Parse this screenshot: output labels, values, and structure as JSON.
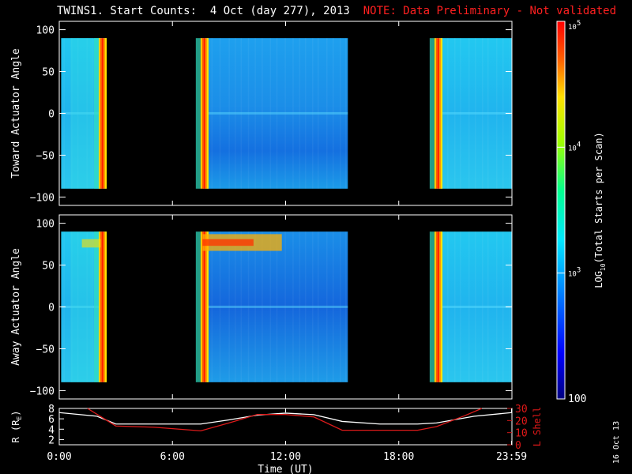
{
  "title": {
    "main": "TWINS1. Start Counts:  4 Oct (day 277), 2013",
    "note": "NOTE: Data Preliminary - Not validated"
  },
  "footer_date": "16 Oct 13",
  "colors": {
    "background": "#000000",
    "text": "#ffffff",
    "note": "#ff2020",
    "axis": "#ffffff",
    "r_line": "#ffffff",
    "lshell_line": "#dd1a1a"
  },
  "chart_data": [
    {
      "type": "heatmap",
      "panel": "toward",
      "ylabel": "Toward Actuator Angle",
      "xlim": [
        0,
        24
      ],
      "ylim": [
        -110,
        110
      ],
      "yticks": [
        -100,
        -50,
        0,
        50,
        100
      ],
      "ytick_labels": [
        "−100",
        "−50",
        "0",
        "50",
        "100"
      ],
      "data_y_range": [
        -90,
        90
      ],
      "data_segments_ut": [
        [
          0.1,
          2.5
        ],
        [
          7.6,
          15.3
        ],
        [
          20.0,
          24.0
        ]
      ],
      "spin_spike_ut": [
        2.3,
        7.7,
        20.1
      ],
      "typical_log10_counts": 3.0
    },
    {
      "type": "heatmap",
      "panel": "away",
      "ylabel": "Away Actuator Angle",
      "xlim": [
        0,
        24
      ],
      "ylim": [
        -110,
        110
      ],
      "yticks": [
        -100,
        -50,
        0,
        50,
        100
      ],
      "ytick_labels": [
        "−100",
        "−50",
        "0",
        "50",
        "100"
      ],
      "data_y_range": [
        -90,
        90
      ],
      "data_segments_ut": [
        [
          0.1,
          2.5
        ],
        [
          7.6,
          15.3
        ],
        [
          20.0,
          24.0
        ]
      ],
      "spin_spike_ut": [
        2.3,
        7.7,
        20.1
      ],
      "high_band_angle": 75,
      "typical_log10_counts": 2.9
    },
    {
      "type": "line",
      "panel": "orbit",
      "xlabel": "Time (UT)",
      "xticks": [
        0,
        6,
        12,
        18,
        23.98
      ],
      "xtick_labels": [
        "0:00",
        "6:00",
        "12:00",
        "18:00",
        "23:59"
      ],
      "xlim": [
        0,
        24
      ],
      "left_axis": {
        "label": "R (R",
        "label_sub": "E",
        "label_end": ")",
        "ylim": [
          1,
          8
        ],
        "ticks": [
          2,
          4,
          6,
          8
        ]
      },
      "right_axis": {
        "label": "L Shell",
        "ylim": [
          0,
          30
        ],
        "ticks": [
          0,
          10,
          20,
          30
        ]
      },
      "series": [
        {
          "axis": "left",
          "x": [
            0,
            2,
            3,
            5,
            7.5,
            9,
            10.5,
            12,
            13.5,
            15,
            17,
            19,
            20,
            22,
            24
          ],
          "values": [
            7.2,
            6.5,
            5.0,
            5.0,
            5.0,
            5.8,
            6.7,
            7.1,
            6.8,
            5.5,
            5.0,
            5.0,
            5.2,
            6.5,
            7.2
          ]
        },
        {
          "axis": "right",
          "x": [
            1.5,
            3,
            5,
            7.5,
            9,
            10.5,
            12,
            13.5,
            15,
            17,
            19,
            20,
            21.5,
            22.4
          ],
          "values": [
            30,
            15.5,
            14.5,
            11.5,
            18,
            25,
            25,
            23,
            12,
            12,
            12,
            15,
            24,
            30
          ]
        }
      ]
    },
    {
      "type": "heatmap",
      "panel": "colorbar",
      "label": "LOG",
      "label_sub": "10",
      "label_end": "(Total Starts per Scan)",
      "range_counts": [
        100,
        100000
      ],
      "tick_labels": [
        {
          "base": "10",
          "exp": "5",
          "value": 100000
        },
        {
          "base": "10",
          "exp": "4",
          "value": 10000
        },
        {
          "base": "10",
          "exp": "3",
          "value": 1000
        },
        {
          "base": "100",
          "exp": "",
          "value": 100
        }
      ]
    }
  ]
}
